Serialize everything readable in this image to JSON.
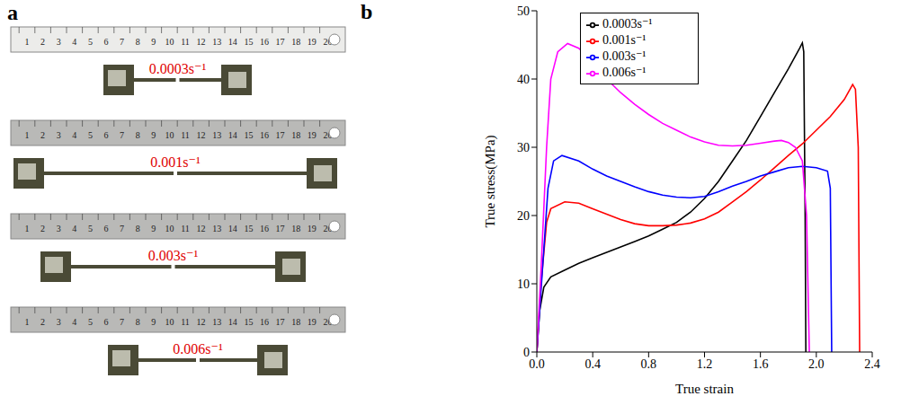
{
  "panel_a": {
    "panel_label": "a",
    "ruler_ticks": [
      1,
      2,
      3,
      4,
      5,
      6,
      7,
      8,
      9,
      10,
      11,
      12,
      13,
      14,
      15,
      16,
      17,
      18,
      19,
      20
    ],
    "specimens": [
      {
        "label": "0.0003s⁻¹"
      },
      {
        "label": "0.001s⁻¹"
      },
      {
        "label": "0.003s⁻¹"
      },
      {
        "label": "0.006s⁻¹"
      }
    ]
  },
  "chart_data": {
    "type": "line",
    "panel_label": "b",
    "x_label": "True strain",
    "y_label": "True stress(MPa)",
    "xlim": [
      0,
      2.4
    ],
    "xticks": [
      {
        "value": 0,
        "label": "0.0"
      },
      {
        "value": 0.4,
        "label": "0.4"
      },
      {
        "value": 0.8,
        "label": "0.8"
      },
      {
        "value": 1.2,
        "label": "1.2"
      },
      {
        "value": 1.6,
        "label": "1.6"
      },
      {
        "value": 2.0,
        "label": "2.0"
      },
      {
        "value": 2.4,
        "label": "2.4"
      }
    ],
    "ylim": [
      0,
      50
    ],
    "yticks": [
      0,
      10,
      20,
      30,
      40,
      50
    ],
    "legend": "upper center",
    "grid": false,
    "series": [
      {
        "name": "0.0003s⁻¹",
        "color": "#000000",
        "x": [
          0,
          0.02,
          0.05,
          0.1,
          0.2,
          0.3,
          0.4,
          0.5,
          0.6,
          0.7,
          0.8,
          0.9,
          1.0,
          1.1,
          1.2,
          1.3,
          1.4,
          1.5,
          1.6,
          1.7,
          1.8,
          1.88,
          1.9,
          1.91,
          1.92,
          1.925
        ],
        "values": [
          0,
          6,
          9.5,
          11,
          12,
          13,
          13.8,
          14.6,
          15.4,
          16.2,
          17,
          18,
          19,
          20.5,
          22.5,
          25,
          28,
          31,
          34.5,
          38,
          41.5,
          44.5,
          45.3,
          44,
          20,
          0
        ]
      },
      {
        "name": "0.001s⁻¹",
        "color": "#ff0000",
        "x": [
          0,
          0.03,
          0.07,
          0.1,
          0.2,
          0.3,
          0.4,
          0.5,
          0.6,
          0.7,
          0.8,
          0.9,
          1.0,
          1.1,
          1.2,
          1.3,
          1.4,
          1.5,
          1.6,
          1.7,
          1.8,
          1.9,
          2.0,
          2.1,
          2.2,
          2.26,
          2.28,
          2.3,
          2.31
        ],
        "values": [
          0,
          10,
          19,
          21,
          22,
          21.8,
          21,
          20.2,
          19.4,
          18.8,
          18.5,
          18.5,
          18.6,
          18.9,
          19.5,
          20.5,
          22,
          23.5,
          25.2,
          27,
          28.8,
          30.5,
          32.5,
          34.5,
          37,
          39.2,
          38.5,
          30,
          0
        ]
      },
      {
        "name": "0.003s⁻¹",
        "color": "#0000ff",
        "x": [
          0,
          0.04,
          0.08,
          0.12,
          0.18,
          0.3,
          0.4,
          0.5,
          0.6,
          0.7,
          0.8,
          0.9,
          1.0,
          1.1,
          1.2,
          1.3,
          1.4,
          1.5,
          1.6,
          1.7,
          1.8,
          1.9,
          2.0,
          2.08,
          2.1,
          2.11
        ],
        "values": [
          0,
          12,
          24,
          28,
          28.8,
          28,
          26.8,
          25.8,
          25,
          24.2,
          23.5,
          23,
          22.7,
          22.6,
          22.8,
          23.5,
          24.3,
          25,
          25.8,
          26.4,
          27,
          27.2,
          27,
          26.5,
          24,
          0
        ]
      },
      {
        "name": "0.006s⁻¹",
        "color": "#ff00ff",
        "x": [
          0,
          0.03,
          0.07,
          0.1,
          0.15,
          0.22,
          0.3,
          0.4,
          0.5,
          0.6,
          0.7,
          0.8,
          0.9,
          1.0,
          1.1,
          1.2,
          1.3,
          1.4,
          1.5,
          1.6,
          1.7,
          1.75,
          1.8,
          1.85,
          1.9,
          1.93,
          1.95
        ],
        "values": [
          0,
          12,
          30,
          40,
          44,
          45.2,
          44.5,
          42.5,
          40,
          38,
          36.3,
          34.8,
          33.5,
          32.5,
          31.5,
          30.8,
          30.3,
          30.2,
          30.3,
          30.6,
          30.9,
          31,
          30.7,
          30,
          28,
          20,
          0
        ]
      }
    ]
  }
}
